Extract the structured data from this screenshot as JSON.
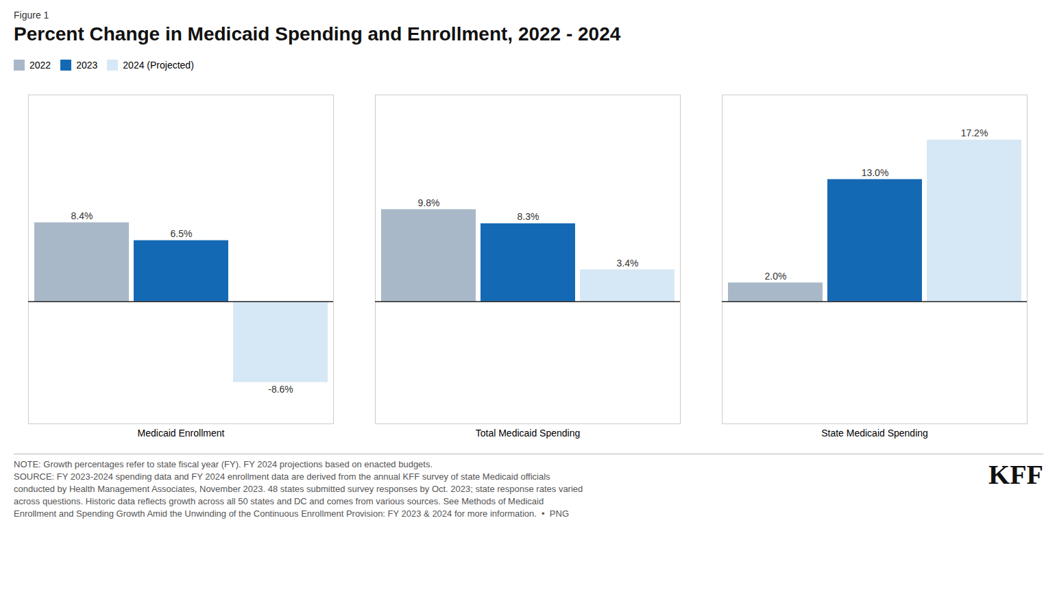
{
  "chart_data": {
    "type": "bar",
    "figure_label": "Figure 1",
    "title": "Percent Change in Medicaid Spending and Enrollment, 2022 - 2024",
    "categories": [
      "Medicaid Enrollment",
      "Total Medicaid Spending",
      "State Medicaid Spending"
    ],
    "series": [
      {
        "name": "2022",
        "color": "#a8b8c8",
        "values": [
          8.4,
          9.8,
          2.0
        ],
        "value_labels": [
          "8.4%",
          "9.8%",
          "2.0%"
        ]
      },
      {
        "name": "2023",
        "color": "#1469b4",
        "values": [
          6.5,
          8.3,
          13.0
        ],
        "value_labels": [
          "6.5%",
          "8.3%",
          "13.0%"
        ]
      },
      {
        "name": "2024 (Projected)",
        "color": "#d6e8f5",
        "values": [
          -8.6,
          3.4,
          17.2
        ],
        "value_labels": [
          "-8.6%",
          "3.4%",
          "17.2%"
        ]
      }
    ],
    "ylim": [
      -13,
      22
    ],
    "yticks": [],
    "tick_labels": "x",
    "grid": false,
    "legend": "top-left",
    "data_labels": true,
    "notes": [
      "NOTE: Growth percentages refer to state fiscal year (FY). FY 2024 projections based on enacted budgets.",
      "SOURCE: FY 2023-2024 spending data and FY 2024 enrollment data are derived from the annual KFF survey of state Medicaid officials",
      "conducted by Health Management Associates, November 2023. 48 states submitted survey responses by Oct. 2023; state response rates varied",
      "across questions. Historic data reflects growth across all 50 states and DC and comes from various sources. See Methods of Medicaid",
      "Enrollment and Spending Growth Amid the Unwinding of the Continuous Enrollment Provision: FY 2023 & 2024 for more information.  •  PNG"
    ],
    "logo": "KFF"
  }
}
